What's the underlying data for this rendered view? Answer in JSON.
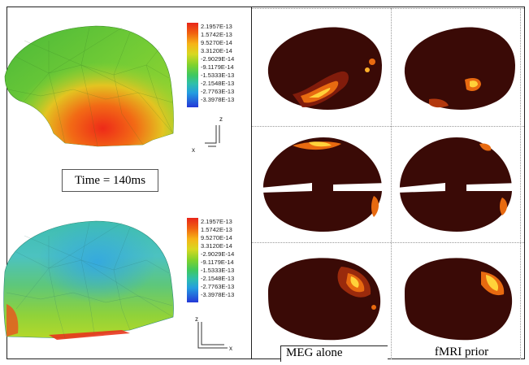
{
  "time_label": "Time = 140ms",
  "colorbar": {
    "labels": [
      "2.1957E-13",
      "1.5742E-13",
      "9.5270E-14",
      "3.3120E-14",
      "-2.9029E-14",
      "-9.1179E-14",
      "-1.5333E-13",
      "-2.1548E-13",
      "-2.7763E-13",
      "-3.3978E-13"
    ],
    "colors": [
      "#e8251a",
      "#f05a10",
      "#f6a417",
      "#ddd820",
      "#8ed62c",
      "#3ec860",
      "#2ebfa0",
      "#23a8d8",
      "#1d72e8",
      "#2438d8"
    ]
  },
  "axes_top": {
    "z": "z",
    "x": "x"
  },
  "axes_bottom": {
    "z": "z",
    "x": "x"
  },
  "captions": {
    "col1": "MEG alone",
    "col2": "fMRI prior"
  }
}
